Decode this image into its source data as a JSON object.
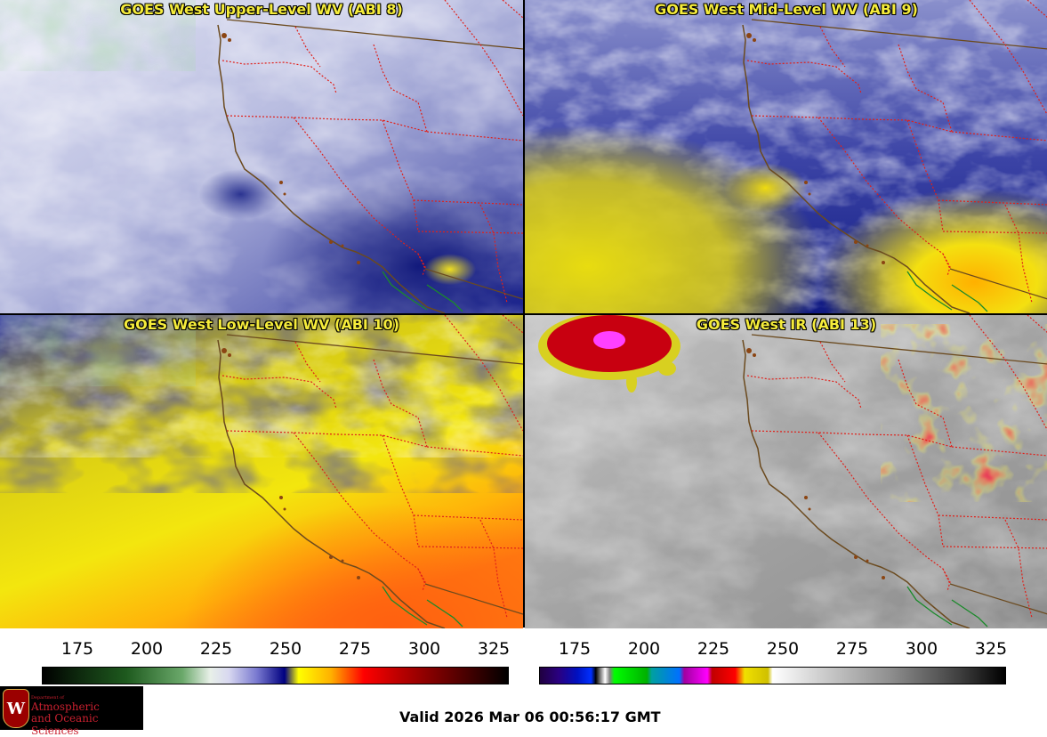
{
  "panels": [
    {
      "title": "GOES West Upper-Level WV (ABI 8)"
    },
    {
      "title": "GOES West Mid-Level WV (ABI 9)"
    },
    {
      "title": "GOES West Low-Level WV (ABI 10)"
    },
    {
      "title": "GOES West IR (ABI 13)"
    }
  ],
  "colorbars": [
    {
      "name": "wv-colorbar",
      "ticks": [
        "175",
        "200",
        "225",
        "250",
        "275",
        "300",
        "325"
      ]
    },
    {
      "name": "ir-colorbar",
      "ticks": [
        "175",
        "200",
        "225",
        "250",
        "275",
        "300",
        "325"
      ]
    }
  ],
  "logo": {
    "seal": "W",
    "dept": "Department of",
    "line1": "Atmospheric",
    "line2": "and Oceanic Sciences"
  },
  "valid_time": "Valid 2026 Mar 06 00:56:17 GMT",
  "colors": {
    "title_text": "#f5ec3b",
    "state_border": "#e0201a",
    "coastline": "#6b4a1e",
    "mexico_border": "#1a8a2a"
  }
}
